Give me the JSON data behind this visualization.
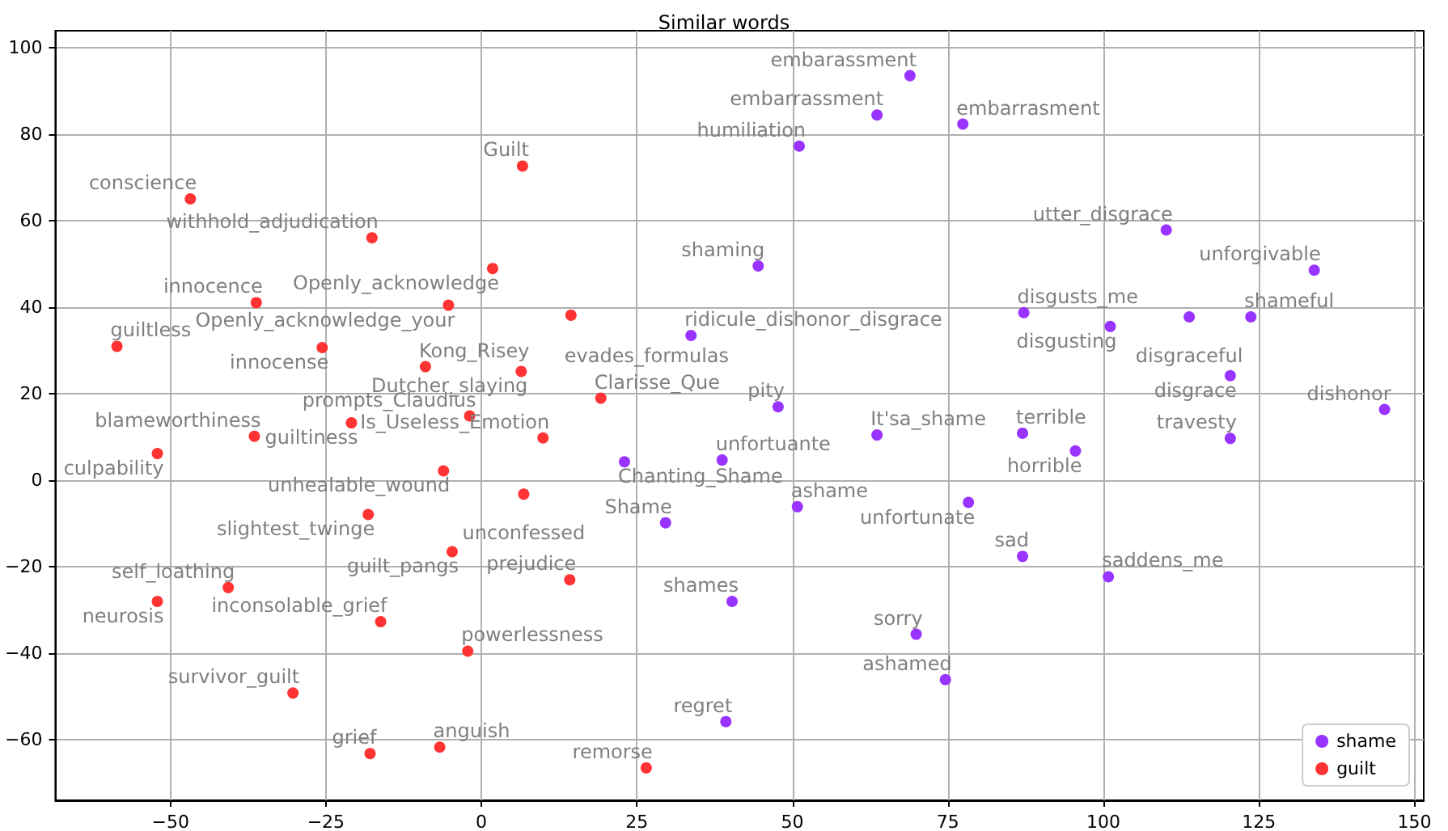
{
  "chart_data": {
    "type": "scatter",
    "title": "Similar words",
    "marker": "circle",
    "grid": true,
    "legend": "bottom right",
    "xlim": [
      -68.5,
      151.5
    ],
    "xticks": [
      -50,
      -25,
      0,
      25,
      50,
      75,
      100,
      125,
      150
    ],
    "ylim": [
      -74,
      104
    ],
    "yticks": [
      -60,
      -40,
      -20,
      0,
      20,
      40,
      60,
      80,
      100
    ],
    "series": [
      {
        "name": "shame",
        "color": "#9933ff",
        "x": [
          68.9,
          63.6,
          77.4,
          51.1,
          44.5,
          33.7,
          110.1,
          133.9,
          87.2,
          101.1,
          113.8,
          123.7,
          120.4,
          145.2,
          47.7,
          63.6,
          87.0,
          95.5,
          120.4,
          23.0,
          38.7,
          50.8,
          78.3,
          29.6,
          87.0,
          100.8,
          40.3,
          69.9,
          74.6,
          39.3
        ],
        "values": [
          93.6,
          84.5,
          82.4,
          77.3,
          49.6,
          33.5,
          57.9,
          48.6,
          38.8,
          35.6,
          37.8,
          37.8,
          24.2,
          16.4,
          17.0,
          10.5,
          10.9,
          6.8,
          9.7,
          4.3,
          4.7,
          -6.1,
          -5.1,
          -9.8,
          -17.6,
          -22.3,
          -28.0,
          -35.6,
          -46.1,
          -55.8
        ]
      },
      {
        "name": "guilt",
        "color": "#ff3333",
        "x": [
          -46.8,
          6.6,
          -17.6,
          1.8,
          -36.2,
          -5.3,
          14.4,
          -58.6,
          -25.6,
          -9.0,
          6.4,
          19.2,
          -1.9,
          -20.9,
          9.9,
          -36.5,
          -52.1,
          -6.1,
          6.8,
          -18.2,
          -4.7,
          14.2,
          -40.7,
          -52.1,
          -16.2,
          -2.2,
          -30.3,
          -17.9,
          -6.7,
          26.5
        ],
        "values": [
          65.1,
          72.7,
          56.1,
          49.0,
          41.1,
          40.5,
          38.2,
          31.0,
          30.7,
          26.3,
          25.2,
          19.0,
          14.9,
          13.3,
          9.8,
          10.2,
          6.2,
          2.2,
          -3.2,
          -7.9,
          -16.5,
          -23.0,
          -24.8,
          -28.0,
          -32.7,
          -39.5,
          -49.2,
          -63.2,
          -61.7,
          -66.5
        ]
      }
    ],
    "annotations": [
      {
        "text": "embarassment",
        "x": 68.9,
        "y": 93.6
      },
      {
        "text": "embarrassment",
        "x": 63.6,
        "y": 84.5
      },
      {
        "text": "embarrasment",
        "x": 77.4,
        "y": 82.4
      },
      {
        "text": "humiliation",
        "x": 51.1,
        "y": 77.3
      },
      {
        "text": "shaming",
        "x": 44.5,
        "y": 49.6
      },
      {
        "text": "ridicule_dishonor_disgrace",
        "x": 33.7,
        "y": 33.5
      },
      {
        "text": "utter_disgrace",
        "x": 110.1,
        "y": 57.9
      },
      {
        "text": "unforgivable",
        "x": 133.9,
        "y": 48.6
      },
      {
        "text": "disgusts_me",
        "x": 87.2,
        "y": 38.8
      },
      {
        "text": "disgusting",
        "x": 101.1,
        "y": 35.6
      },
      {
        "text": "disgraceful",
        "x": 113.8,
        "y": 37.8
      },
      {
        "text": "shameful",
        "x": 123.7,
        "y": 37.8
      },
      {
        "text": "disgrace",
        "x": 120.4,
        "y": 24.2
      },
      {
        "text": "dishonor",
        "x": 145.2,
        "y": 16.4
      },
      {
        "text": "pity",
        "x": 47.7,
        "y": 17.0
      },
      {
        "text": "It'sa_shame",
        "x": 63.6,
        "y": 10.5
      },
      {
        "text": "terrible",
        "x": 87.0,
        "y": 10.9
      },
      {
        "text": "horrible",
        "x": 95.5,
        "y": 6.8
      },
      {
        "text": "travesty",
        "x": 120.4,
        "y": 9.7
      },
      {
        "text": "Chanting_Shame",
        "x": 23.0,
        "y": 4.3
      },
      {
        "text": "unfortuante",
        "x": 38.7,
        "y": 4.7
      },
      {
        "text": "ashame",
        "x": 50.8,
        "y": -6.1
      },
      {
        "text": "unfortunate",
        "x": 78.3,
        "y": -5.1
      },
      {
        "text": "Shame",
        "x": 29.6,
        "y": -9.8
      },
      {
        "text": "sad",
        "x": 87.0,
        "y": -17.6
      },
      {
        "text": "saddens_me",
        "x": 100.8,
        "y": -22.3
      },
      {
        "text": "shames",
        "x": 40.3,
        "y": -28.0
      },
      {
        "text": "sorry",
        "x": 69.9,
        "y": -35.6
      },
      {
        "text": "ashamed",
        "x": 74.6,
        "y": -46.1
      },
      {
        "text": "regret",
        "x": 39.3,
        "y": -55.8
      },
      {
        "text": "conscience",
        "x": -46.8,
        "y": 65.1
      },
      {
        "text": "Guilt",
        "x": 6.6,
        "y": 72.7
      },
      {
        "text": "withhold_adjudication",
        "x": -17.6,
        "y": 56.1
      },
      {
        "text": "Openly_acknowledge",
        "x": 1.8,
        "y": 49.0
      },
      {
        "text": "innocence",
        "x": -36.2,
        "y": 41.1
      },
      {
        "text": "Openly_acknowledge_your",
        "x": -5.3,
        "y": 40.5
      },
      {
        "text": "evades_formulas",
        "x": 14.4,
        "y": 38.2
      },
      {
        "text": "guiltless",
        "x": -58.6,
        "y": 31.0
      },
      {
        "text": "innocense",
        "x": -25.6,
        "y": 30.7
      },
      {
        "text": "Kong_Risey",
        "x": -9.0,
        "y": 26.3
      },
      {
        "text": "Dutcher_slaying",
        "x": 6.4,
        "y": 25.2
      },
      {
        "text": "Clarisse_Que",
        "x": 19.2,
        "y": 19.0
      },
      {
        "text": "prompts_Claudius",
        "x": -1.9,
        "y": 14.9
      },
      {
        "text": "guiltiness",
        "x": -20.9,
        "y": 13.3
      },
      {
        "text": "Is_Useless_Emotion",
        "x": 9.9,
        "y": 9.8
      },
      {
        "text": "blameworthiness",
        "x": -36.5,
        "y": 10.2
      },
      {
        "text": "culpability",
        "x": -52.1,
        "y": 6.2
      },
      {
        "text": "unhealable_wound",
        "x": -6.1,
        "y": 2.2
      },
      {
        "text": "unconfessed",
        "x": 6.8,
        "y": -3.2
      },
      {
        "text": "slightest_twinge",
        "x": -18.2,
        "y": -7.9
      },
      {
        "text": "guilt_pangs",
        "x": -4.7,
        "y": -16.5
      },
      {
        "text": "prejudice",
        "x": 14.2,
        "y": -23.0
      },
      {
        "text": "self_loathing",
        "x": -40.7,
        "y": -24.8
      },
      {
        "text": "neurosis",
        "x": -52.1,
        "y": -28.0
      },
      {
        "text": "inconsolable_grief",
        "x": -16.2,
        "y": -32.7
      },
      {
        "text": "powerlessness",
        "x": -2.2,
        "y": -39.5
      },
      {
        "text": "survivor_guilt",
        "x": -30.3,
        "y": -49.2
      },
      {
        "text": "grief",
        "x": -17.9,
        "y": -63.2
      },
      {
        "text": "anguish",
        "x": -6.7,
        "y": -61.7
      },
      {
        "text": "remorse",
        "x": 26.5,
        "y": -66.5
      }
    ]
  }
}
